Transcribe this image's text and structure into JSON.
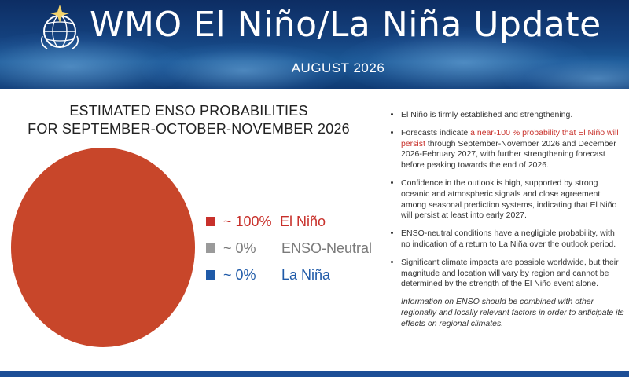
{
  "header": {
    "title": "WMO El Niño/La Niña Update",
    "subtitle": "AUGUST 2026"
  },
  "chart_data": {
    "type": "pie",
    "title_line1": "ESTIMATED ENSO PROBABILITIES",
    "title_line2": "FOR SEPTEMBER-OCTOBER-NOVEMBER 2026",
    "slices": [
      {
        "name": "El Niño",
        "value_label": "~ 100%",
        "value": 100,
        "color": "#c8462a",
        "legend_color": "#c8312b",
        "text_color": "#c8312b"
      },
      {
        "name": "ENSO-Neutral",
        "value_label": "~ 0%",
        "value": 0,
        "color": "#9a9a9a",
        "legend_color": "#9a9a9a",
        "text_color": "#7a7a7a"
      },
      {
        "name": "La Niña",
        "value_label": "~ 0%",
        "value": 0,
        "color": "#1f5aa8",
        "legend_color": "#1f5aa8",
        "text_color": "#1f5aa8"
      }
    ],
    "legend_position": "right"
  },
  "bullets": {
    "b1": "El Niño is firmly established and strengthening.",
    "b2_pre": "Forecasts indicate ",
    "b2_highlight": "a near-100 % probability that El Niño will persist",
    "b2_post": " through September-November 2026 and December 2026-February 2027, with further strengthening forecast before peaking towards the end of 2026.",
    "b3": "Confidence in the outlook is high, supported by strong oceanic and atmospheric signals and close agreement among seasonal prediction systems, indicating that El Niño will persist at least into early 2027.",
    "b4": "ENSO-neutral conditions have a negligible probability, with no indication of a return to La Niña over the outlook period.",
    "b5": "Significant climate impacts are possible worldwide, but their magnitude and location will vary by region and cannot be determined by the strength of the El Niño event alone.",
    "note": "Information on ENSO should be combined with other regionally and locally relevant factors in order to anticipate its effects on regional climates."
  },
  "colors": {
    "banner": "#14427f",
    "accent_red": "#c8312b",
    "footer": "#1d4e96"
  }
}
